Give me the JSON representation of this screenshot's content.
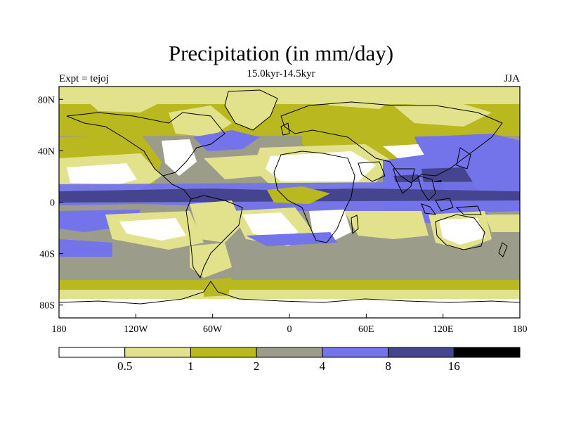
{
  "title": "Precipitation (in mm/day)",
  "subtitle": "15.0kyr-14.5kyr",
  "left_label": "Expt = tejoj",
  "right_label": "JJA",
  "y_ticks": [
    "80N",
    "40N",
    "0",
    "40S",
    "80S"
  ],
  "x_ticks": [
    "180",
    "120W",
    "60W",
    "0",
    "60E",
    "120E",
    "180"
  ],
  "colorbar": {
    "colors": [
      "#ffffff",
      "#e2e28c",
      "#b9b91f",
      "#9c9c8a",
      "#7373ea",
      "#45458f",
      "#000000"
    ],
    "labels": [
      "0.5",
      "1",
      "2",
      "4",
      "8",
      "16"
    ]
  },
  "chart_data": {
    "type": "map",
    "variable": "Precipitation",
    "units": "mm/day",
    "season": "JJA",
    "experiment": "tejoj",
    "period": "15.0kyr-14.5kyr",
    "lon_range": [
      -180,
      180
    ],
    "lat_range": [
      -90,
      90
    ],
    "contour_levels": [
      0.5,
      1,
      2,
      4,
      8,
      16
    ]
  }
}
